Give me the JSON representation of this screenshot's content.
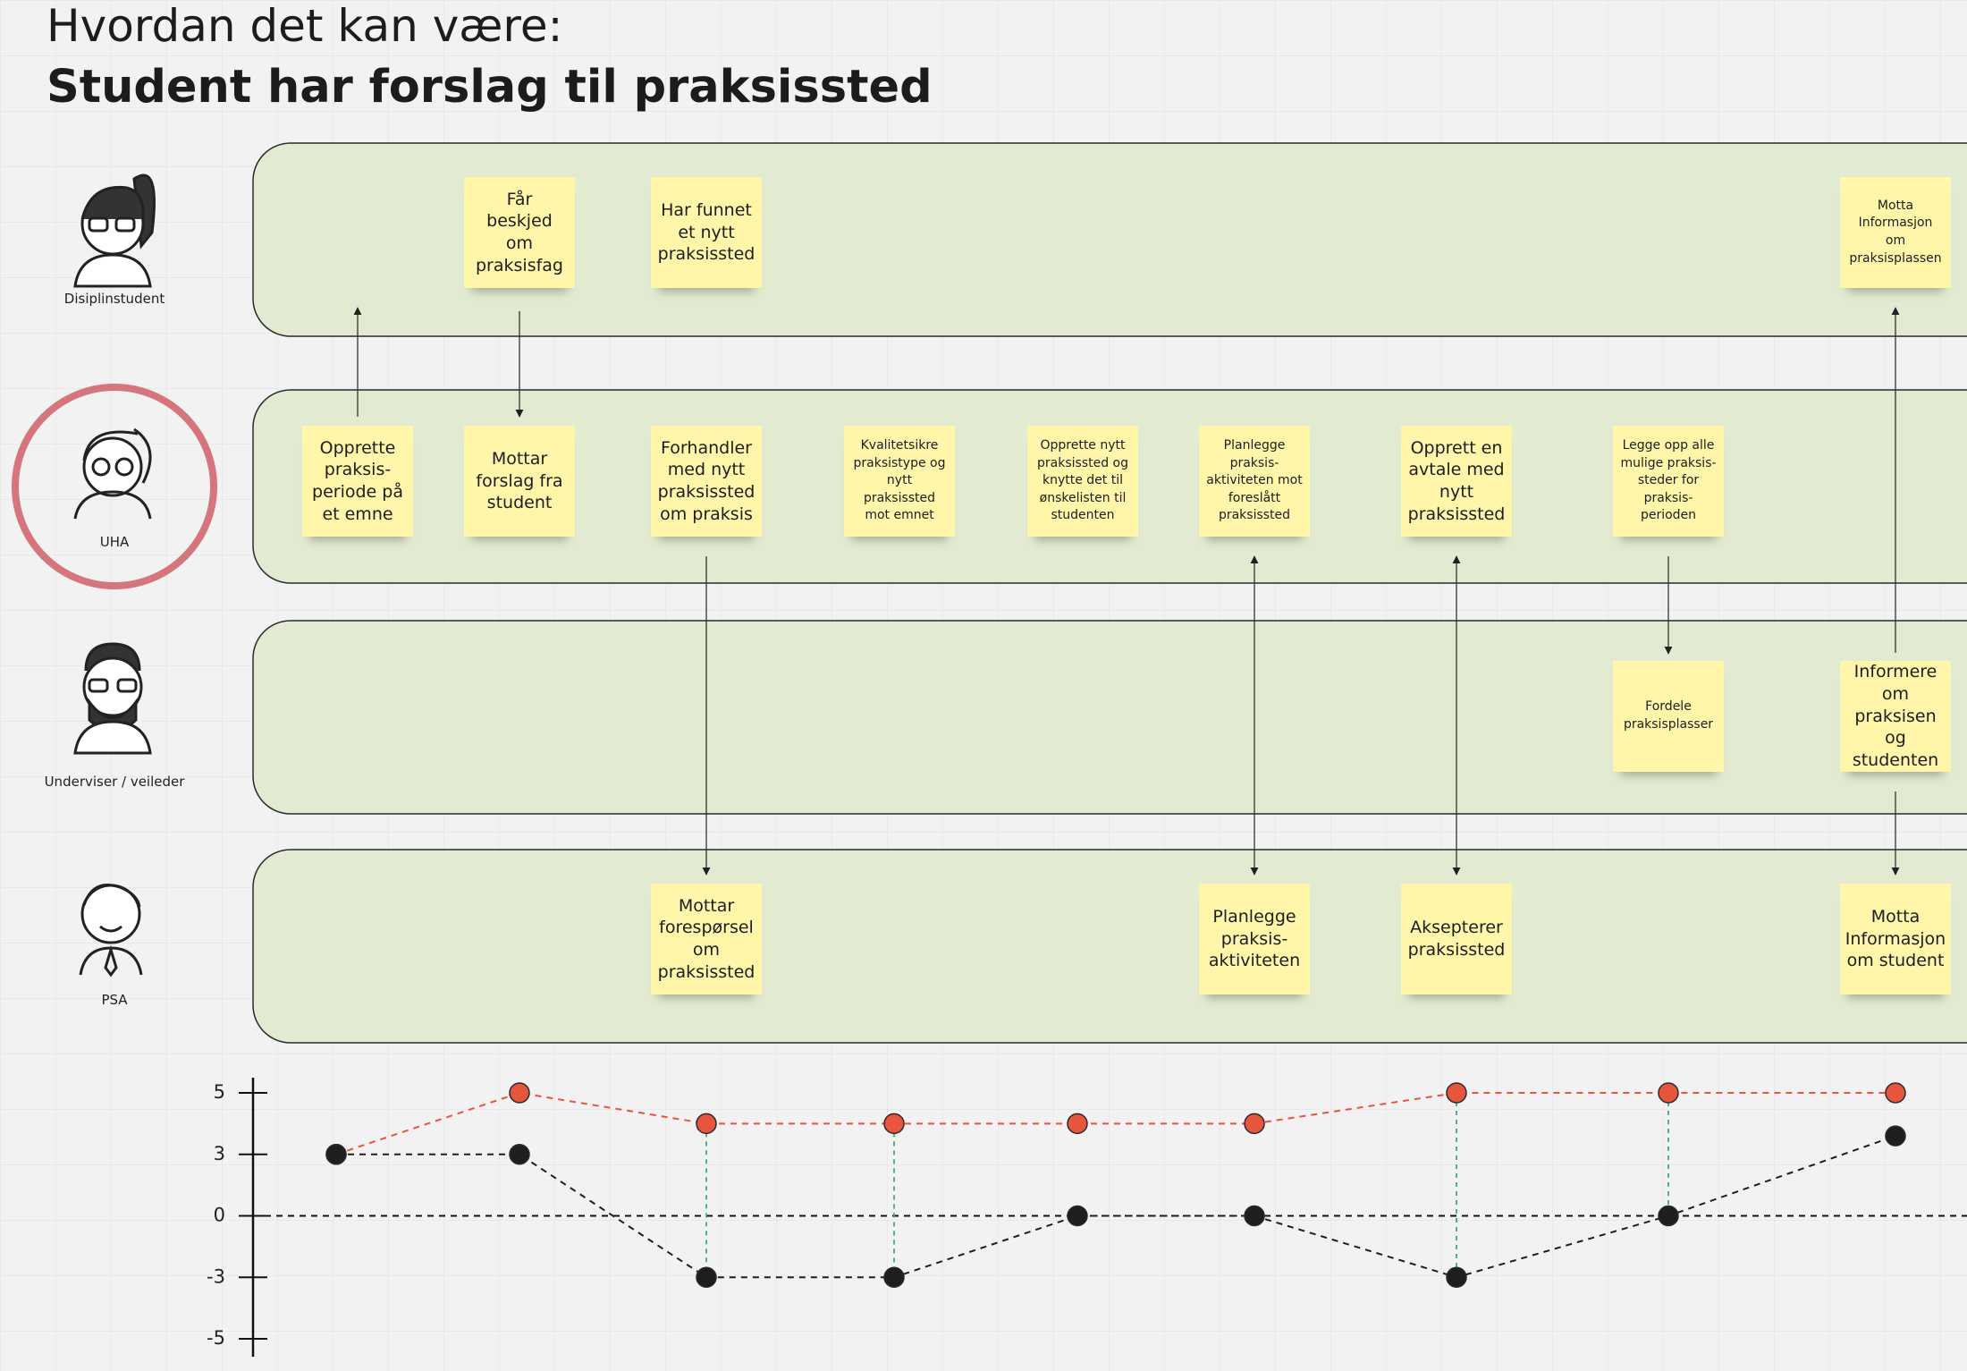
{
  "header": {
    "subtitle": "Hvordan det kan være:",
    "title": "Student har forslag til praksissted"
  },
  "lanes": [
    {
      "label": "Disiplinstudent",
      "cells": [
        null,
        "Får beskjed om praksisfag",
        "Har funnet et nytt praksissted",
        null,
        null,
        null,
        null,
        null,
        "Motta Informasjon om praksisplassen"
      ]
    },
    {
      "label": "UHA",
      "cells": [
        "Opprette praksis-periode på et emne",
        "Mottar forslag fra student",
        "Forhandler med nytt praksissted om praksis",
        "Kvalitetsikre praksistype og nytt praksissted mot emnet",
        "Opprette nytt praksissted og knytte det til ønskelisten til studenten",
        "Planlegge praksis-aktiviteten mot foreslått praksissted",
        "Opprett en avtale med nytt praksissted",
        "Legge opp alle mulige praksis-steder for praksis-perioden",
        null
      ]
    },
    {
      "label": "Underviser / veileder",
      "cells": [
        null,
        null,
        null,
        null,
        null,
        null,
        null,
        "Fordele praksisplasser",
        "Informere om praksisen og studenten"
      ]
    },
    {
      "label": "PSA",
      "cells": [
        null,
        null,
        "Mottar forespørsel om praksissted",
        null,
        null,
        "Planlegge praksis-aktiviteten",
        "Aksepterer praksissted",
        null,
        "Motta Informasjon om student"
      ]
    }
  ],
  "chart": {
    "type": "line",
    "yticks": [
      5,
      3,
      0,
      -3,
      -5
    ],
    "series": [
      {
        "color": "#e8553d",
        "values": [
          3,
          5,
          4,
          4,
          4,
          4,
          5,
          5,
          5
        ]
      },
      {
        "color": "#1e1e1e",
        "values": [
          3,
          3,
          -3,
          -3,
          0,
          0,
          -3,
          0,
          3.6
        ]
      }
    ]
  }
}
